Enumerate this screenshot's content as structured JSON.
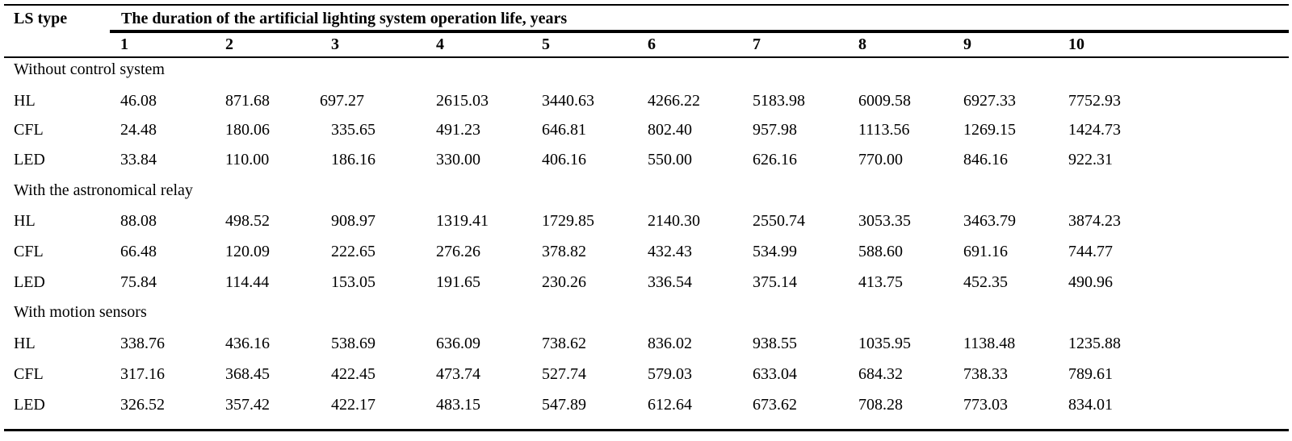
{
  "table": {
    "row_header": "LS type",
    "span_header": "The duration of the artificial lighting system operation life, years",
    "years": [
      "1",
      "2",
      "3",
      "4",
      "5",
      "6",
      "7",
      "8",
      "9",
      "10"
    ],
    "groups": [
      {
        "title": "Without control system",
        "rows": [
          {
            "type": "HL",
            "values": [
              "46.08",
              "871.68",
              "697.27",
              "2615.03",
              "3440.63",
              "4266.22",
              "5183.98",
              "6009.58",
              "6927.33",
              "7752.93"
            ]
          },
          {
            "type": "CFL",
            "values": [
              "24.48",
              "180.06",
              "335.65",
              "491.23",
              "646.81",
              "802.40",
              "957.98",
              "1113.56",
              "1269.15",
              "1424.73"
            ]
          },
          {
            "type": "LED",
            "values": [
              "33.84",
              "110.00",
              "186.16",
              "330.00",
              "406.16",
              "550.00",
              "626.16",
              "770.00",
              "846.16",
              "922.31"
            ]
          }
        ]
      },
      {
        "title": "With the astronomical relay",
        "rows": [
          {
            "type": "HL",
            "values": [
              "88.08",
              "498.52",
              "908.97",
              "1319.41",
              "1729.85",
              "2140.30",
              "2550.74",
              "3053.35",
              "3463.79",
              "3874.23"
            ]
          },
          {
            "type": "CFL",
            "values": [
              "66.48",
              "120.09",
              "222.65",
              "276.26",
              "378.82",
              "432.43",
              "534.99",
              "588.60",
              "691.16",
              "744.77"
            ]
          },
          {
            "type": "LED",
            "values": [
              "75.84",
              "114.44",
              "153.05",
              "191.65",
              "230.26",
              "336.54",
              "375.14",
              "413.75",
              "452.35",
              "490.96"
            ]
          }
        ]
      },
      {
        "title": "With motion sensors",
        "rows": [
          {
            "type": "HL",
            "values": [
              "338.76",
              "436.16",
              "538.69",
              "636.09",
              "738.62",
              "836.02",
              "938.55",
              "1035.95",
              "1138.48",
              "1235.88"
            ]
          },
          {
            "type": "CFL",
            "values": [
              "317.16",
              "368.45",
              "422.45",
              "473.74",
              "527.74",
              "579.03",
              "633.04",
              "684.32",
              "738.33",
              "789.61"
            ]
          },
          {
            "type": "LED",
            "values": [
              "326.52",
              "357.42",
              "422.17",
              "483.15",
              "547.89",
              "612.64",
              "673.62",
              "708.28",
              "773.03",
              "834.01"
            ]
          }
        ]
      }
    ]
  }
}
